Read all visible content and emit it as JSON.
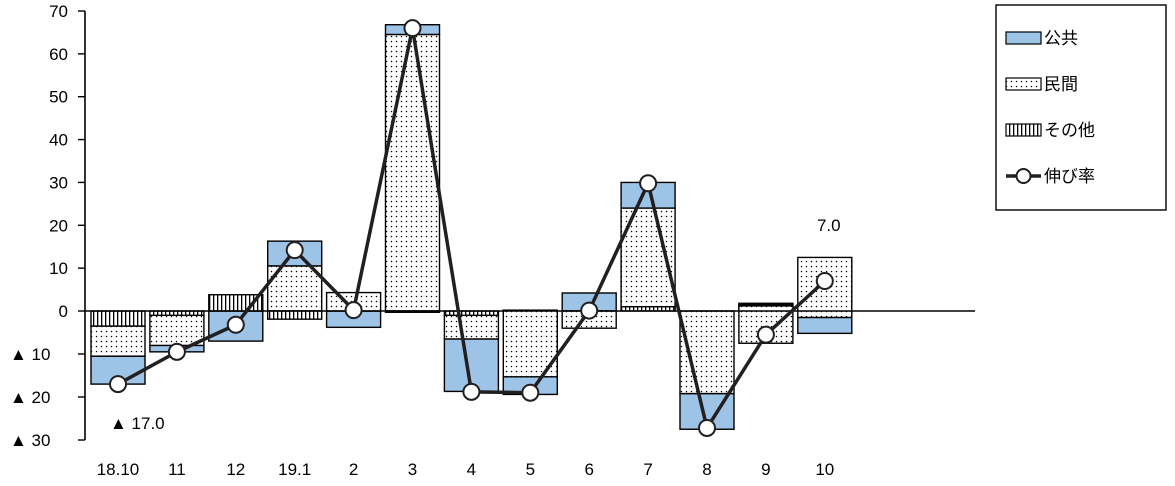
{
  "chart_data": {
    "type": "bar",
    "subtype": "stacked-bar-with-line",
    "categories": [
      "18.10",
      "11",
      "12",
      "19.1",
      "2",
      "3",
      "4",
      "5",
      "6",
      "7",
      "8",
      "9",
      "10"
    ],
    "series": [
      {
        "name": "公共",
        "kind": "bar",
        "pattern": "solid",
        "color": "#9dc3e6",
        "segments": [
          [
            -17,
            -10.5
          ],
          [
            -9.5,
            -8
          ],
          [
            -7,
            0
          ],
          [
            10.5,
            16.3
          ],
          [
            -3.8,
            0
          ],
          [
            64.5,
            66.8
          ],
          [
            -18.7,
            -6.5
          ],
          [
            -19.4,
            -15.3
          ],
          [
            0,
            4.2
          ],
          [
            24,
            30
          ],
          [
            -27.5,
            -19.2
          ],
          [
            0,
            1.8
          ],
          [
            -5.2,
            -1.5
          ]
        ]
      },
      {
        "name": "民間",
        "kind": "bar",
        "pattern": "dots",
        "color": "#ffffff",
        "segments": [
          [
            -10.5,
            -3.5
          ],
          [
            -8,
            -1
          ],
          [
            0,
            0
          ],
          [
            0,
            10.5
          ],
          [
            0,
            4.3
          ],
          [
            0,
            64.5
          ],
          [
            -6.5,
            -1
          ],
          [
            -15.3,
            0.2
          ],
          [
            -4,
            0
          ],
          [
            1,
            24
          ],
          [
            -19.2,
            0
          ],
          [
            -7.5,
            1.2
          ],
          [
            -1.5,
            12.5
          ]
        ]
      },
      {
        "name": "その他",
        "kind": "bar",
        "pattern": "vertical-hatch",
        "color": "#ffffff",
        "segments": [
          [
            -3.5,
            0
          ],
          [
            -1,
            0
          ],
          [
            0,
            3.8
          ],
          [
            -1.9,
            0
          ],
          [
            0,
            0
          ],
          [
            -0.3,
            0
          ],
          [
            -1,
            0
          ],
          [
            0,
            0
          ],
          [
            0,
            0
          ],
          [
            0,
            1
          ],
          [
            0,
            0
          ],
          [
            1.2,
            1.5
          ],
          [
            0,
            0
          ]
        ]
      },
      {
        "name": "伸び率",
        "kind": "line",
        "marker": "circle",
        "color": "#231f20",
        "values": [
          -17.0,
          -9.5,
          -3.2,
          14.2,
          0.2,
          66.0,
          -18.8,
          -19.0,
          0.1,
          29.8,
          -27.2,
          -5.5,
          7.0
        ]
      }
    ],
    "ylim": [
      -30,
      70
    ],
    "yticks": [
      70,
      60,
      50,
      40,
      30,
      20,
      10,
      0,
      -10,
      -20,
      -30
    ],
    "ytick_labels": [
      "70",
      "60",
      "50",
      "40",
      "30",
      "20",
      "10",
      "0",
      "▲ 10",
      "▲ 20",
      "▲ 30"
    ],
    "title": "",
    "xlabel": "",
    "ylabel": "",
    "grid": false,
    "legend_position": "top-right",
    "annotations": [
      {
        "category_index": 0,
        "text": "▲ 17.0",
        "placement": "below"
      },
      {
        "category_index": 12,
        "text": "7.0",
        "placement": "above"
      }
    ]
  }
}
